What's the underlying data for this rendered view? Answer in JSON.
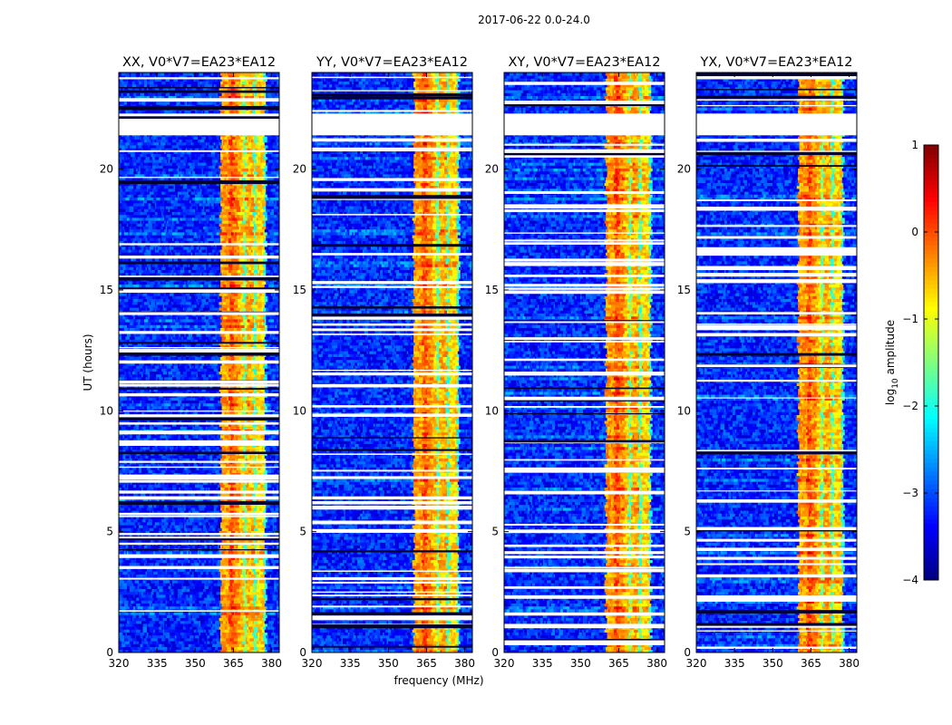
{
  "figure": {
    "suptitle": "2017-06-22 0.0-24.0"
  },
  "colorbar": {
    "label": "log10 amplitude",
    "label_base": "log",
    "label_sub": "10",
    "label_rest": " amplitude",
    "range": [
      -4,
      1
    ],
    "ticks": [
      1,
      0,
      -1,
      -2,
      -3,
      -4
    ],
    "tick_labels": [
      "1",
      "0",
      "−1",
      "−2",
      "−3",
      "−4"
    ],
    "colormap": "jet"
  },
  "chart_data": [
    {
      "type": "heatmap",
      "title": "XX, V0*V7=EA23*EA12",
      "xlabel": "frequency (MHz)",
      "ylabel": "UT (hours)",
      "xlim": [
        320,
        383
      ],
      "ylim": [
        0,
        24
      ],
      "xticks": [
        320,
        335,
        350,
        365,
        380
      ],
      "yticks": [
        0,
        5,
        10,
        15,
        20
      ],
      "value": "log10 amplitude",
      "bands": [
        {
          "range": [
            360,
            363.5
          ],
          "value": -0.4
        },
        {
          "range": [
            363.5,
            365
          ],
          "value": 0.0
        },
        {
          "range": [
            365,
            367
          ],
          "value": -0.3
        },
        {
          "range": [
            367,
            369
          ],
          "value": -0.6
        },
        {
          "range": [
            369,
            370
          ],
          "value": -1.6
        },
        {
          "range": [
            370,
            373
          ],
          "value": -0.5
        },
        {
          "range": [
            373,
            374
          ],
          "value": -1.8
        },
        {
          "range": [
            374,
            377
          ],
          "value": -0.7
        },
        {
          "range": [
            377,
            378
          ],
          "value": -2.0
        }
      ],
      "blank_rows_hours": [
        [
          21.4,
          22.3
        ]
      ]
    },
    {
      "type": "heatmap",
      "title": "YY, V0*V7=EA23*EA12",
      "xlabel": "frequency (MHz)",
      "ylabel": "UT (hours)",
      "xlim": [
        320,
        383
      ],
      "ylim": [
        0,
        24
      ],
      "xticks": [
        320,
        335,
        350,
        365,
        380
      ],
      "yticks": [
        0,
        5,
        10,
        15,
        20
      ],
      "value": "log10 amplitude",
      "bands": [
        {
          "range": [
            360,
            363.5
          ],
          "value": -0.4
        },
        {
          "range": [
            363.5,
            365
          ],
          "value": 0.0
        },
        {
          "range": [
            365,
            367
          ],
          "value": -0.3
        },
        {
          "range": [
            367,
            369
          ],
          "value": -0.6
        },
        {
          "range": [
            369,
            370
          ],
          "value": -1.6
        },
        {
          "range": [
            370,
            373
          ],
          "value": -0.5
        },
        {
          "range": [
            373,
            374
          ],
          "value": -1.8
        },
        {
          "range": [
            374,
            377
          ],
          "value": -0.7
        },
        {
          "range": [
            377,
            378
          ],
          "value": -2.0
        }
      ],
      "blank_rows_hours": [
        [
          21.4,
          22.3
        ]
      ]
    },
    {
      "type": "heatmap",
      "title": "XY, V0*V7=EA23*EA12",
      "xlabel": "frequency (MHz)",
      "ylabel": "UT (hours)",
      "xlim": [
        320,
        383
      ],
      "ylim": [
        0,
        24
      ],
      "xticks": [
        320,
        335,
        350,
        365,
        380
      ],
      "yticks": [
        0,
        5,
        10,
        15,
        20
      ],
      "value": "log10 amplitude",
      "bands": [
        {
          "range": [
            360,
            363.5
          ],
          "value": -0.4
        },
        {
          "range": [
            363.5,
            365
          ],
          "value": 0.0
        },
        {
          "range": [
            365,
            367
          ],
          "value": -0.3
        },
        {
          "range": [
            367,
            369
          ],
          "value": -0.6
        },
        {
          "range": [
            369,
            370
          ],
          "value": -1.6
        },
        {
          "range": [
            370,
            373
          ],
          "value": -0.5
        },
        {
          "range": [
            373,
            374
          ],
          "value": -1.8
        },
        {
          "range": [
            374,
            377
          ],
          "value": -0.7
        },
        {
          "range": [
            377,
            378
          ],
          "value": -2.0
        }
      ],
      "blank_rows_hours": [
        [
          21.4,
          22.3
        ]
      ]
    },
    {
      "type": "heatmap",
      "title": "YX, V0*V7=EA23*EA12",
      "xlabel": "frequency (MHz)",
      "ylabel": "UT (hours)",
      "xlim": [
        320,
        383
      ],
      "ylim": [
        0,
        24
      ],
      "xticks": [
        320,
        335,
        350,
        365,
        380
      ],
      "yticks": [
        0,
        5,
        10,
        15,
        20
      ],
      "value": "log10 amplitude",
      "bands": [
        {
          "range": [
            360,
            363.5
          ],
          "value": -0.4
        },
        {
          "range": [
            363.5,
            365
          ],
          "value": 0.0
        },
        {
          "range": [
            365,
            367
          ],
          "value": -0.3
        },
        {
          "range": [
            367,
            369
          ],
          "value": -0.6
        },
        {
          "range": [
            369,
            370
          ],
          "value": -1.6
        },
        {
          "range": [
            370,
            373
          ],
          "value": -0.5
        },
        {
          "range": [
            373,
            374
          ],
          "value": -1.8
        },
        {
          "range": [
            374,
            377
          ],
          "value": -0.7
        },
        {
          "range": [
            377,
            378
          ],
          "value": -2.0
        }
      ],
      "blank_rows_hours": [
        [
          21.4,
          22.3
        ]
      ]
    }
  ]
}
